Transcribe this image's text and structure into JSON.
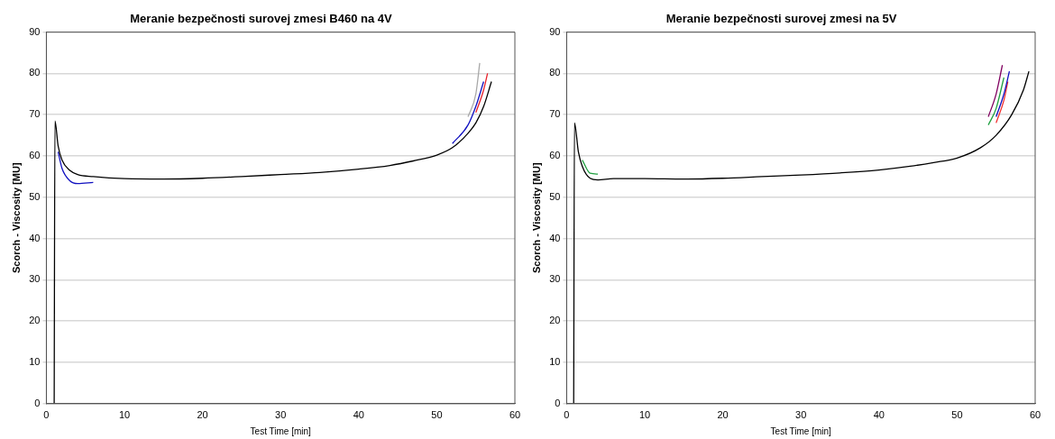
{
  "chart_data": [
    {
      "type": "line",
      "title": "Meranie bezpečnosti surovej zmesi B460 na 4V",
      "xlabel": "Test Time [min]",
      "ylabel": "Scorch - Viscosity [MU]",
      "xlim": [
        0,
        60
      ],
      "xticks": [
        0,
        10,
        20,
        30,
        40,
        50,
        60
      ],
      "ylim": [
        0,
        90
      ],
      "yticks": [
        0,
        10,
        20,
        30,
        40,
        50,
        60,
        70,
        80,
        90
      ],
      "grid": "y",
      "legend": false,
      "series": [
        {
          "color": "#000000",
          "x": [
            1,
            1.1,
            1.5,
            2,
            3,
            4,
            6,
            10,
            15,
            20,
            25,
            30,
            35,
            40,
            44,
            47,
            50,
            52,
            54,
            55,
            56,
            57
          ],
          "values": [
            0,
            68.5,
            62.5,
            59,
            56.5,
            55.5,
            55,
            54.5,
            54.4,
            54.6,
            55,
            55.5,
            56,
            56.8,
            57.7,
            58.8,
            60.2,
            62,
            65.5,
            68,
            72,
            78
          ]
        },
        {
          "color": "#a8a8a8",
          "x": [
            54,
            55,
            55.5
          ],
          "values": [
            69.5,
            75,
            82.5
          ]
        },
        {
          "color": "#1010c0",
          "x": [
            1.5,
            2,
            3,
            4,
            6,
            20,
            52,
            54,
            55,
            56
          ],
          "values": [
            61,
            57,
            54,
            53.3,
            53.6,
            null,
            63,
            67.5,
            72,
            78
          ]
        },
        {
          "color": "#e8202a",
          "x": [
            55,
            56,
            56.5
          ],
          "values": [
            70.5,
            76,
            80
          ]
        }
      ]
    },
    {
      "type": "line",
      "title": "Meranie bezpečnosti surovej zmesi na 5V",
      "xlabel": "Test Time [min]",
      "ylabel": "Scorch - Viscosity [MU]",
      "xlim": [
        0,
        60
      ],
      "xticks": [
        0,
        10,
        20,
        30,
        40,
        50,
        60
      ],
      "ylim": [
        0,
        90
      ],
      "yticks": [
        0,
        10,
        20,
        30,
        40,
        50,
        60,
        70,
        80,
        90
      ],
      "grid": "y",
      "legend": false,
      "series": [
        {
          "color": "#000000",
          "x": [
            0.9,
            1,
            1.5,
            2,
            3,
            4,
            6,
            10,
            15,
            20,
            25,
            30,
            35,
            40,
            44,
            47,
            50,
            53,
            55,
            57,
            58.5,
            59.2
          ],
          "values": [
            0,
            68,
            61,
            57.5,
            54.6,
            54.2,
            54.5,
            54.5,
            54.4,
            54.6,
            55,
            55.4,
            55.9,
            56.6,
            57.5,
            58.4,
            59.5,
            62,
            65,
            70,
            76,
            80.5
          ]
        },
        {
          "color": "#800060",
          "x": [
            54,
            55,
            55.8
          ],
          "values": [
            69.5,
            75,
            82
          ]
        },
        {
          "color": "#20a040",
          "x": [
            2,
            3,
            4,
            20,
            54,
            55,
            56
          ],
          "values": [
            59,
            55.8,
            55.6,
            null,
            67.5,
            71.5,
            79
          ]
        },
        {
          "color": "#1010c0",
          "x": [
            55,
            56,
            56.7
          ],
          "values": [
            69.5,
            75,
            80.5
          ]
        },
        {
          "color": "#f03030",
          "x": [
            55,
            56,
            56.5
          ],
          "values": [
            68,
            73.5,
            78
          ]
        }
      ]
    }
  ]
}
